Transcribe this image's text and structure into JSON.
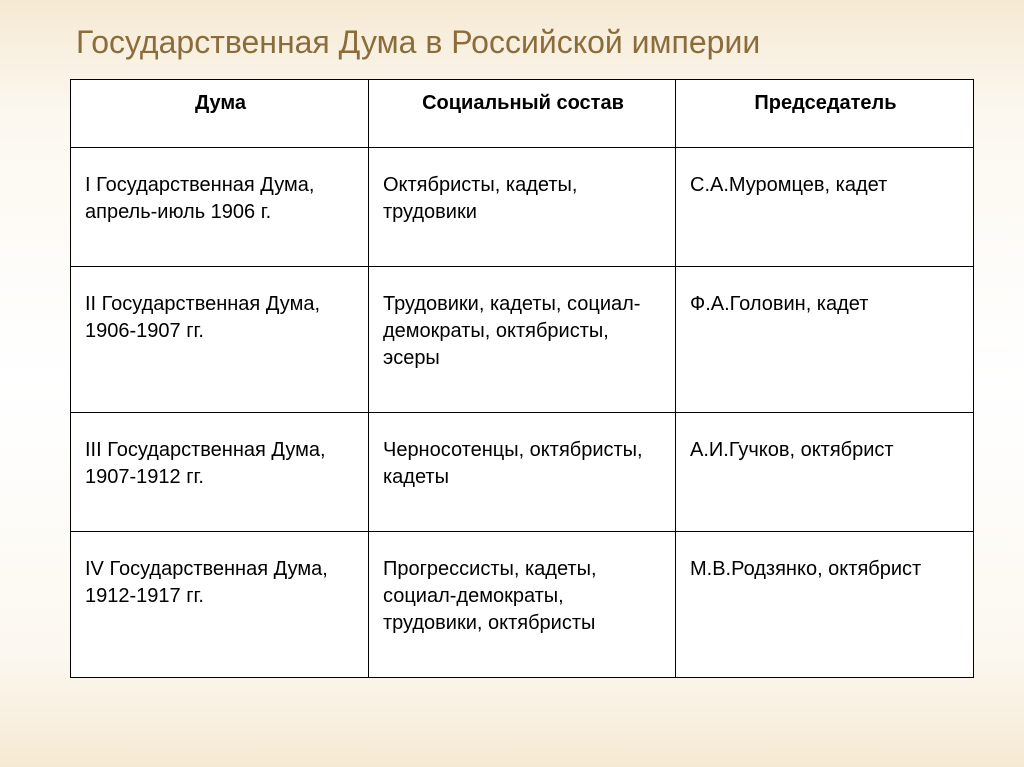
{
  "title": "Государственная Дума в Российской империи",
  "table": {
    "columns": [
      "Дума",
      "Социальный состав",
      "Председатель"
    ],
    "rows": [
      [
        "I Государственная Дума, апрель-июль 1906 г.",
        "Октябристы, кадеты, трудовики",
        "С.А.Муромцев, кадет"
      ],
      [
        "II Государственная Дума, 1906-1907 гг.",
        "Трудовики, кадеты, социал-демократы, октябристы, эсеры",
        "Ф.А.Головин, кадет"
      ],
      [
        "III Государственная Дума, 1907-1912 гг.",
        "Черносотенцы, октябристы, кадеты",
        "А.И.Гучков, октябрист"
      ],
      [
        "IV Государственная Дума, 1912-1917 гг.",
        "Прогрессисты, кадеты, социал-демократы, трудовики, октябристы",
        "М.В.Родзянко, октябрист"
      ]
    ],
    "border_color": "#000000",
    "title_color": "#8a6d3b",
    "background_gradient": [
      "#f5e9d3",
      "#ffffff",
      "#f5e9d3"
    ],
    "cell_background": "#ffffff",
    "font_size_title": 32,
    "font_size_cell": 20
  }
}
